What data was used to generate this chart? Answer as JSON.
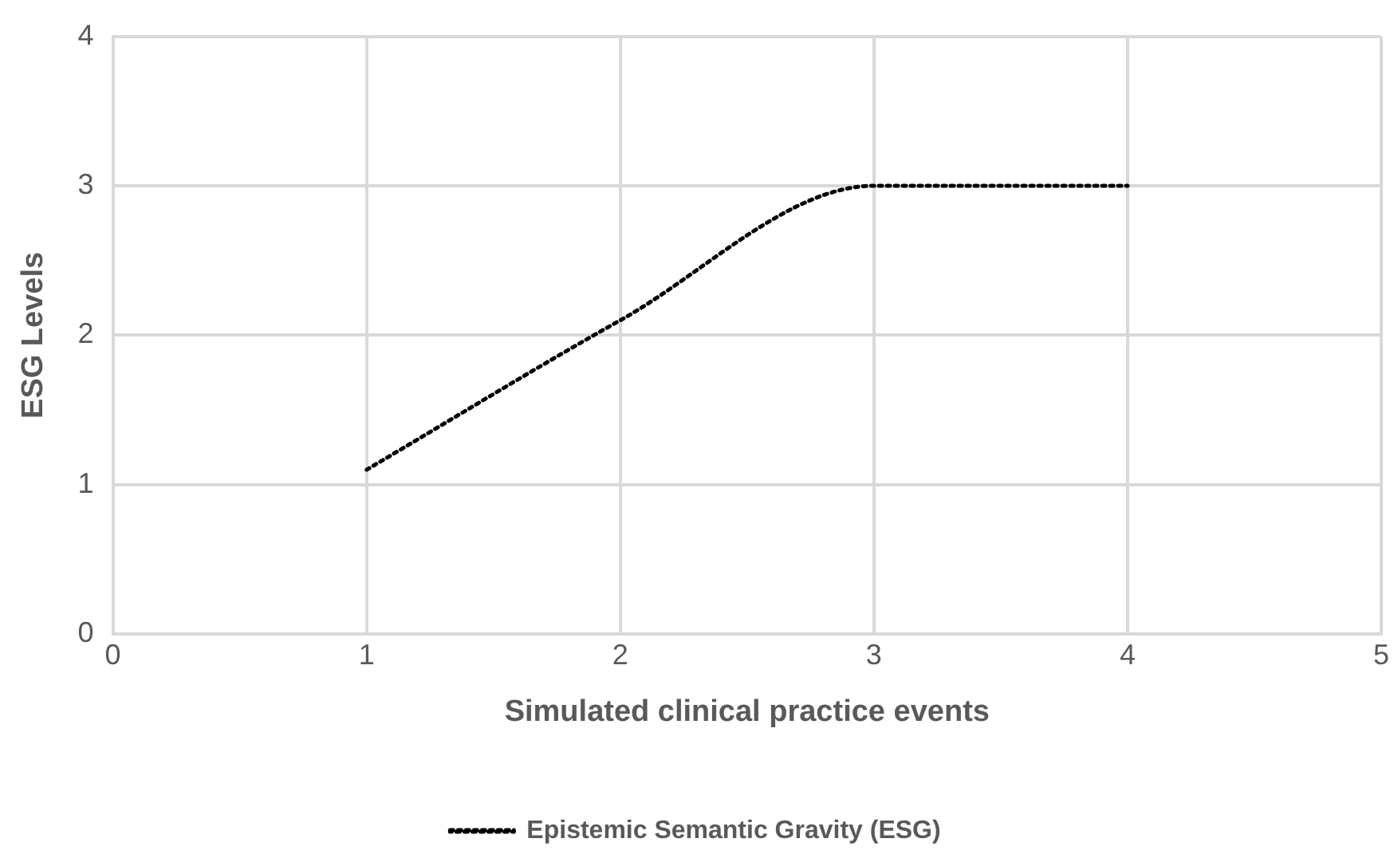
{
  "chart_data": {
    "type": "line",
    "xlabel": "Simulated clinical practice events",
    "ylabel": "ESG Levels",
    "x": [
      1,
      2,
      3,
      4
    ],
    "series": [
      {
        "name": "Epistemic Semantic Gravity (ESG)",
        "color": "#000000",
        "values": [
          1.1,
          2.1,
          3.0,
          3.0
        ]
      }
    ],
    "xlim": [
      0,
      5
    ],
    "xticks": [
      0,
      1,
      2,
      3,
      4,
      5
    ],
    "ylim": [
      0,
      4
    ],
    "yticks": [
      0,
      1,
      2,
      3,
      4
    ],
    "grid": true,
    "legend": "bottom",
    "line_style": "dotted",
    "marker": "none"
  }
}
